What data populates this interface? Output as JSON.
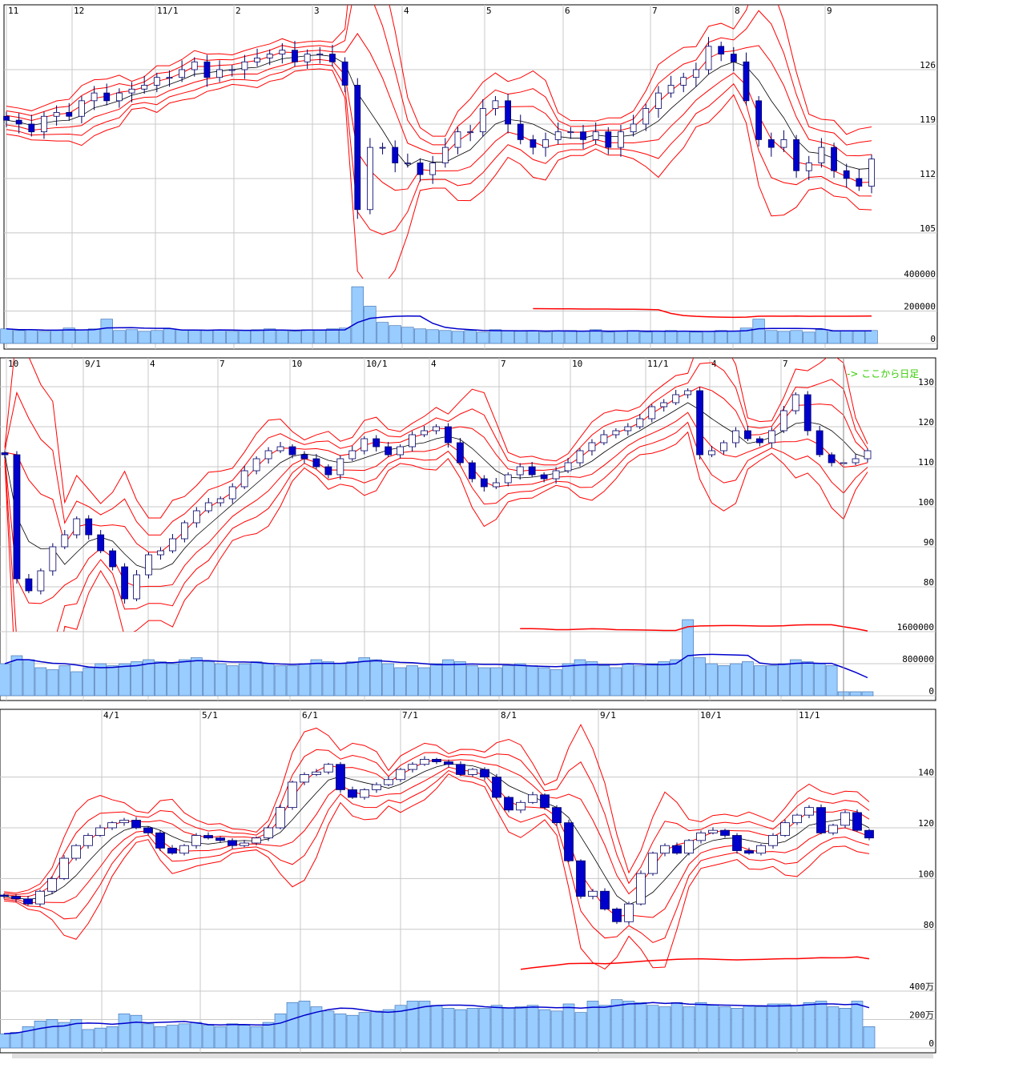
{
  "colors": {
    "up_body": "#ffffff",
    "down_body": "#0000cc",
    "candle_outline": "#000066",
    "bands": "#ff0000",
    "average": "#000000",
    "volume_bar": "#99ccff",
    "volume_avg_short": "#0000cc",
    "volume_avg_long": "#ff0000",
    "grid": "#c8c8c8",
    "note": "#33cc00"
  },
  "chart_data": [
    {
      "type": "candlestick",
      "grid": true,
      "x_tick_labels": [
        "11",
        "12",
        "11/1",
        "2",
        "3",
        "4",
        "5",
        "6",
        "7",
        "8",
        "9"
      ],
      "y_tick_labels": [
        "126",
        "119",
        "112",
        "105"
      ],
      "y_ticks": [
        126,
        119,
        112,
        105
      ],
      "volume_tick_labels": [
        "400000",
        "200000",
        "0"
      ],
      "volume_ticks": [
        400000,
        200000,
        0
      ],
      "close": [
        119.5,
        119,
        118,
        120,
        120.5,
        120,
        122,
        123,
        122,
        123,
        123.5,
        124,
        125,
        125,
        126,
        127,
        125,
        126,
        126,
        127,
        127.5,
        128,
        128.5,
        127,
        128,
        128,
        127,
        124,
        108,
        116,
        116,
        114,
        114,
        112.5,
        114,
        116,
        118,
        118,
        121,
        122,
        119,
        117,
        116,
        117,
        118,
        118,
        117,
        118,
        116,
        118,
        119,
        121,
        123,
        124,
        125,
        126,
        129,
        128,
        127,
        122,
        117,
        116,
        117,
        113,
        114,
        116,
        113,
        112,
        111,
        114.5
      ],
      "volume": [
        90000,
        80000,
        85000,
        75000,
        80000,
        95000,
        85000,
        90000,
        150000,
        80000,
        85000,
        75000,
        80000,
        90000,
        85000,
        80000,
        80000,
        85000,
        75000,
        80000,
        85000,
        90000,
        80000,
        75000,
        85000,
        80000,
        90000,
        95000,
        350000,
        230000,
        130000,
        110000,
        100000,
        90000,
        85000,
        80000,
        75000,
        80000,
        70000,
        85000,
        80000,
        75000,
        80000,
        70000,
        75000,
        80000,
        75000,
        85000,
        70000,
        75000,
        80000,
        70000,
        75000,
        80000,
        75000,
        70000,
        75000,
        80000,
        75000,
        95000,
        150000,
        80000,
        75000,
        80000,
        70000,
        85000,
        75000,
        80000,
        75000,
        80000
      ]
    },
    {
      "type": "candlestick",
      "grid": true,
      "x_tick_labels": [
        "10",
        "9/1",
        "4",
        "7",
        "10",
        "10/1",
        "4",
        "7",
        "10",
        "11/1",
        "4",
        "7"
      ],
      "y_tick_labels": [
        "130",
        "120",
        "110",
        "100",
        "90",
        "80"
      ],
      "y_ticks": [
        130,
        120,
        110,
        100,
        90,
        80
      ],
      "volume_tick_labels": [
        "1600000",
        "800000",
        "0"
      ],
      "volume_ticks": [
        1600000,
        800000,
        0
      ],
      "annotation": "-> ここから日足",
      "close": [
        113,
        82,
        79,
        84,
        90,
        93,
        97,
        93,
        89,
        85,
        77,
        83,
        88,
        89,
        92,
        96,
        99,
        101,
        102,
        105,
        109,
        112,
        114,
        115,
        113,
        112,
        110,
        108,
        112,
        114,
        117,
        115,
        113,
        115,
        118,
        119,
        120,
        116,
        111,
        107,
        105,
        106,
        108,
        110,
        108,
        107,
        109,
        111,
        114,
        116,
        118,
        119,
        120,
        122,
        125,
        126,
        128,
        129,
        113,
        114,
        116,
        119,
        117,
        116,
        119,
        124,
        128,
        119,
        113,
        111,
        111,
        112,
        114
      ],
      "volume": [
        800000,
        1000000,
        900000,
        700000,
        650000,
        750000,
        600000,
        700000,
        800000,
        750000,
        800000,
        850000,
        900000,
        850000,
        800000,
        900000,
        950000,
        850000,
        800000,
        750000,
        800000,
        850000,
        800000,
        750000,
        750000,
        800000,
        900000,
        850000,
        800000,
        850000,
        950000,
        900000,
        800000,
        700000,
        750000,
        700000,
        800000,
        900000,
        850000,
        750000,
        700000,
        700000,
        750000,
        800000,
        750000,
        700000,
        650000,
        800000,
        900000,
        850000,
        750000,
        700000,
        800000,
        750000,
        800000,
        850000,
        900000,
        1900000,
        950000,
        800000,
        750000,
        800000,
        850000,
        750000,
        750000,
        800000,
        900000,
        850000,
        800000,
        750000,
        100000,
        100000,
        100000
      ]
    },
    {
      "type": "candlestick",
      "grid": true,
      "x_tick_labels": [
        "4/1",
        "5/1",
        "6/1",
        "7/1",
        "8/1",
        "9/1",
        "10/1",
        "11/1"
      ],
      "y_tick_labels": [
        "140",
        "120",
        "100",
        "80"
      ],
      "y_ticks": [
        140,
        120,
        100,
        80
      ],
      "volume_tick_labels": [
        "400万",
        "200万",
        "0"
      ],
      "volume_ticks": [
        400,
        200,
        0
      ],
      "close": [
        93,
        92,
        90,
        95,
        100,
        108,
        113,
        117,
        120,
        122,
        123,
        120,
        118,
        112,
        110,
        113,
        117,
        116,
        115,
        113,
        114,
        116,
        120,
        128,
        138,
        141,
        142,
        145,
        135,
        132,
        135,
        137,
        139,
        143,
        145,
        147,
        146,
        145,
        141,
        143,
        140,
        132,
        127,
        130,
        133,
        128,
        122,
        107,
        93,
        95,
        88,
        83,
        90,
        102,
        110,
        113,
        110,
        115,
        118,
        119,
        117,
        111,
        110,
        113,
        117,
        122,
        125,
        128,
        118,
        121,
        126,
        119,
        116
      ],
      "volume": [
        100,
        110,
        150,
        190,
        200,
        180,
        200,
        130,
        140,
        150,
        240,
        230,
        170,
        150,
        160,
        170,
        180,
        160,
        150,
        170,
        160,
        150,
        180,
        240,
        320,
        330,
        290,
        260,
        240,
        230,
        250,
        260,
        270,
        300,
        330,
        330,
        300,
        280,
        270,
        280,
        280,
        300,
        280,
        290,
        300,
        270,
        260,
        310,
        250,
        330,
        300,
        340,
        330,
        320,
        300,
        290,
        320,
        290,
        320,
        300,
        290,
        280,
        300,
        290,
        310,
        310,
        300,
        320,
        330,
        290,
        280,
        330,
        150
      ]
    }
  ]
}
